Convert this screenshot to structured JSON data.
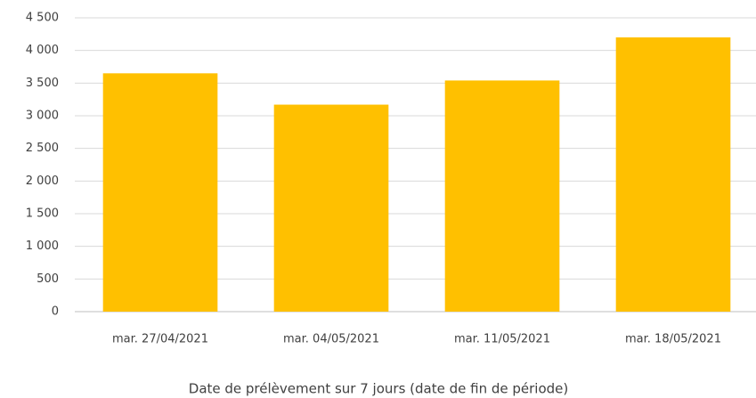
{
  "chart_data": {
    "type": "bar",
    "x_label": "Date de prélèvement sur 7 jours (date de fin de période)",
    "categories": [
      "mar. 27/04/2021",
      "mar. 04/05/2021",
      "mar. 11/05/2021",
      "mar. 18/05/2021"
    ],
    "values": [
      3650,
      3170,
      3540,
      4200
    ],
    "color": "#ffc000",
    "ylim": [
      0,
      4500
    ],
    "yticks": [
      0,
      500,
      {
        "value": 1000,
        "label": "1 000"
      },
      {
        "value": 1500,
        "label": "1 500"
      },
      {
        "value": 2000,
        "label": "2 000"
      },
      {
        "value": 2500,
        "label": "2 500"
      },
      {
        "value": 3000,
        "label": "3 000"
      },
      {
        "value": 3500,
        "label": "3 500"
      },
      {
        "value": 4000,
        "label": "4 000"
      },
      {
        "value": 4500,
        "label": "4 500"
      }
    ],
    "grid": true
  }
}
